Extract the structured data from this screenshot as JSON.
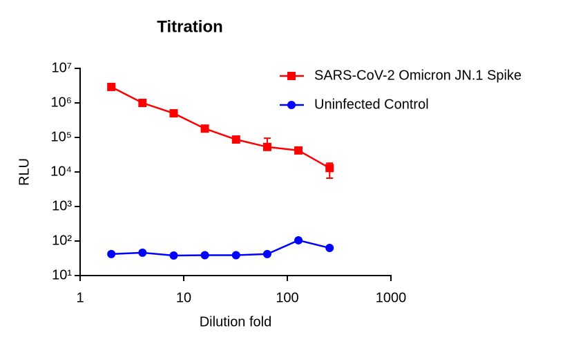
{
  "chart_data": {
    "type": "line",
    "title": "Titration",
    "x_label": "Dilution fold",
    "y_label": "RLU",
    "x": [
      2,
      4,
      8,
      16,
      32,
      64,
      128,
      256
    ],
    "xlim": [
      1,
      1000
    ],
    "xticks": [
      1,
      10,
      100,
      1000
    ],
    "xscale": "log",
    "ylim": [
      10,
      10000000
    ],
    "yscale": "log",
    "yticks": [
      {
        "value": 10,
        "label": "10¹"
      },
      {
        "value": 100,
        "label": "10²"
      },
      {
        "value": 1000,
        "label": "10³"
      },
      {
        "value": 10000,
        "label": "10⁴"
      },
      {
        "value": 100000,
        "label": "10⁵"
      },
      {
        "value": 1000000,
        "label": "10⁶"
      },
      {
        "value": 10000000,
        "label": "10⁷"
      }
    ],
    "legend": "top-right",
    "series": [
      {
        "name": "SARS-CoV-2 Omicron JN.1 Spike",
        "color": "#ff0000",
        "marker": "square",
        "values": [
          2900000,
          1000000,
          500000,
          180000,
          87000,
          53000,
          42000,
          13000
        ],
        "error_plus": [
          null,
          null,
          null,
          null,
          null,
          42000,
          null,
          5000
        ],
        "error_minus": [
          null,
          null,
          null,
          null,
          null,
          null,
          null,
          6400
        ]
      },
      {
        "name": "Uninfected Control",
        "color": "#0000ff",
        "marker": "circle",
        "values": [
          42,
          46,
          38,
          39,
          39,
          42,
          105,
          63
        ]
      }
    ]
  }
}
